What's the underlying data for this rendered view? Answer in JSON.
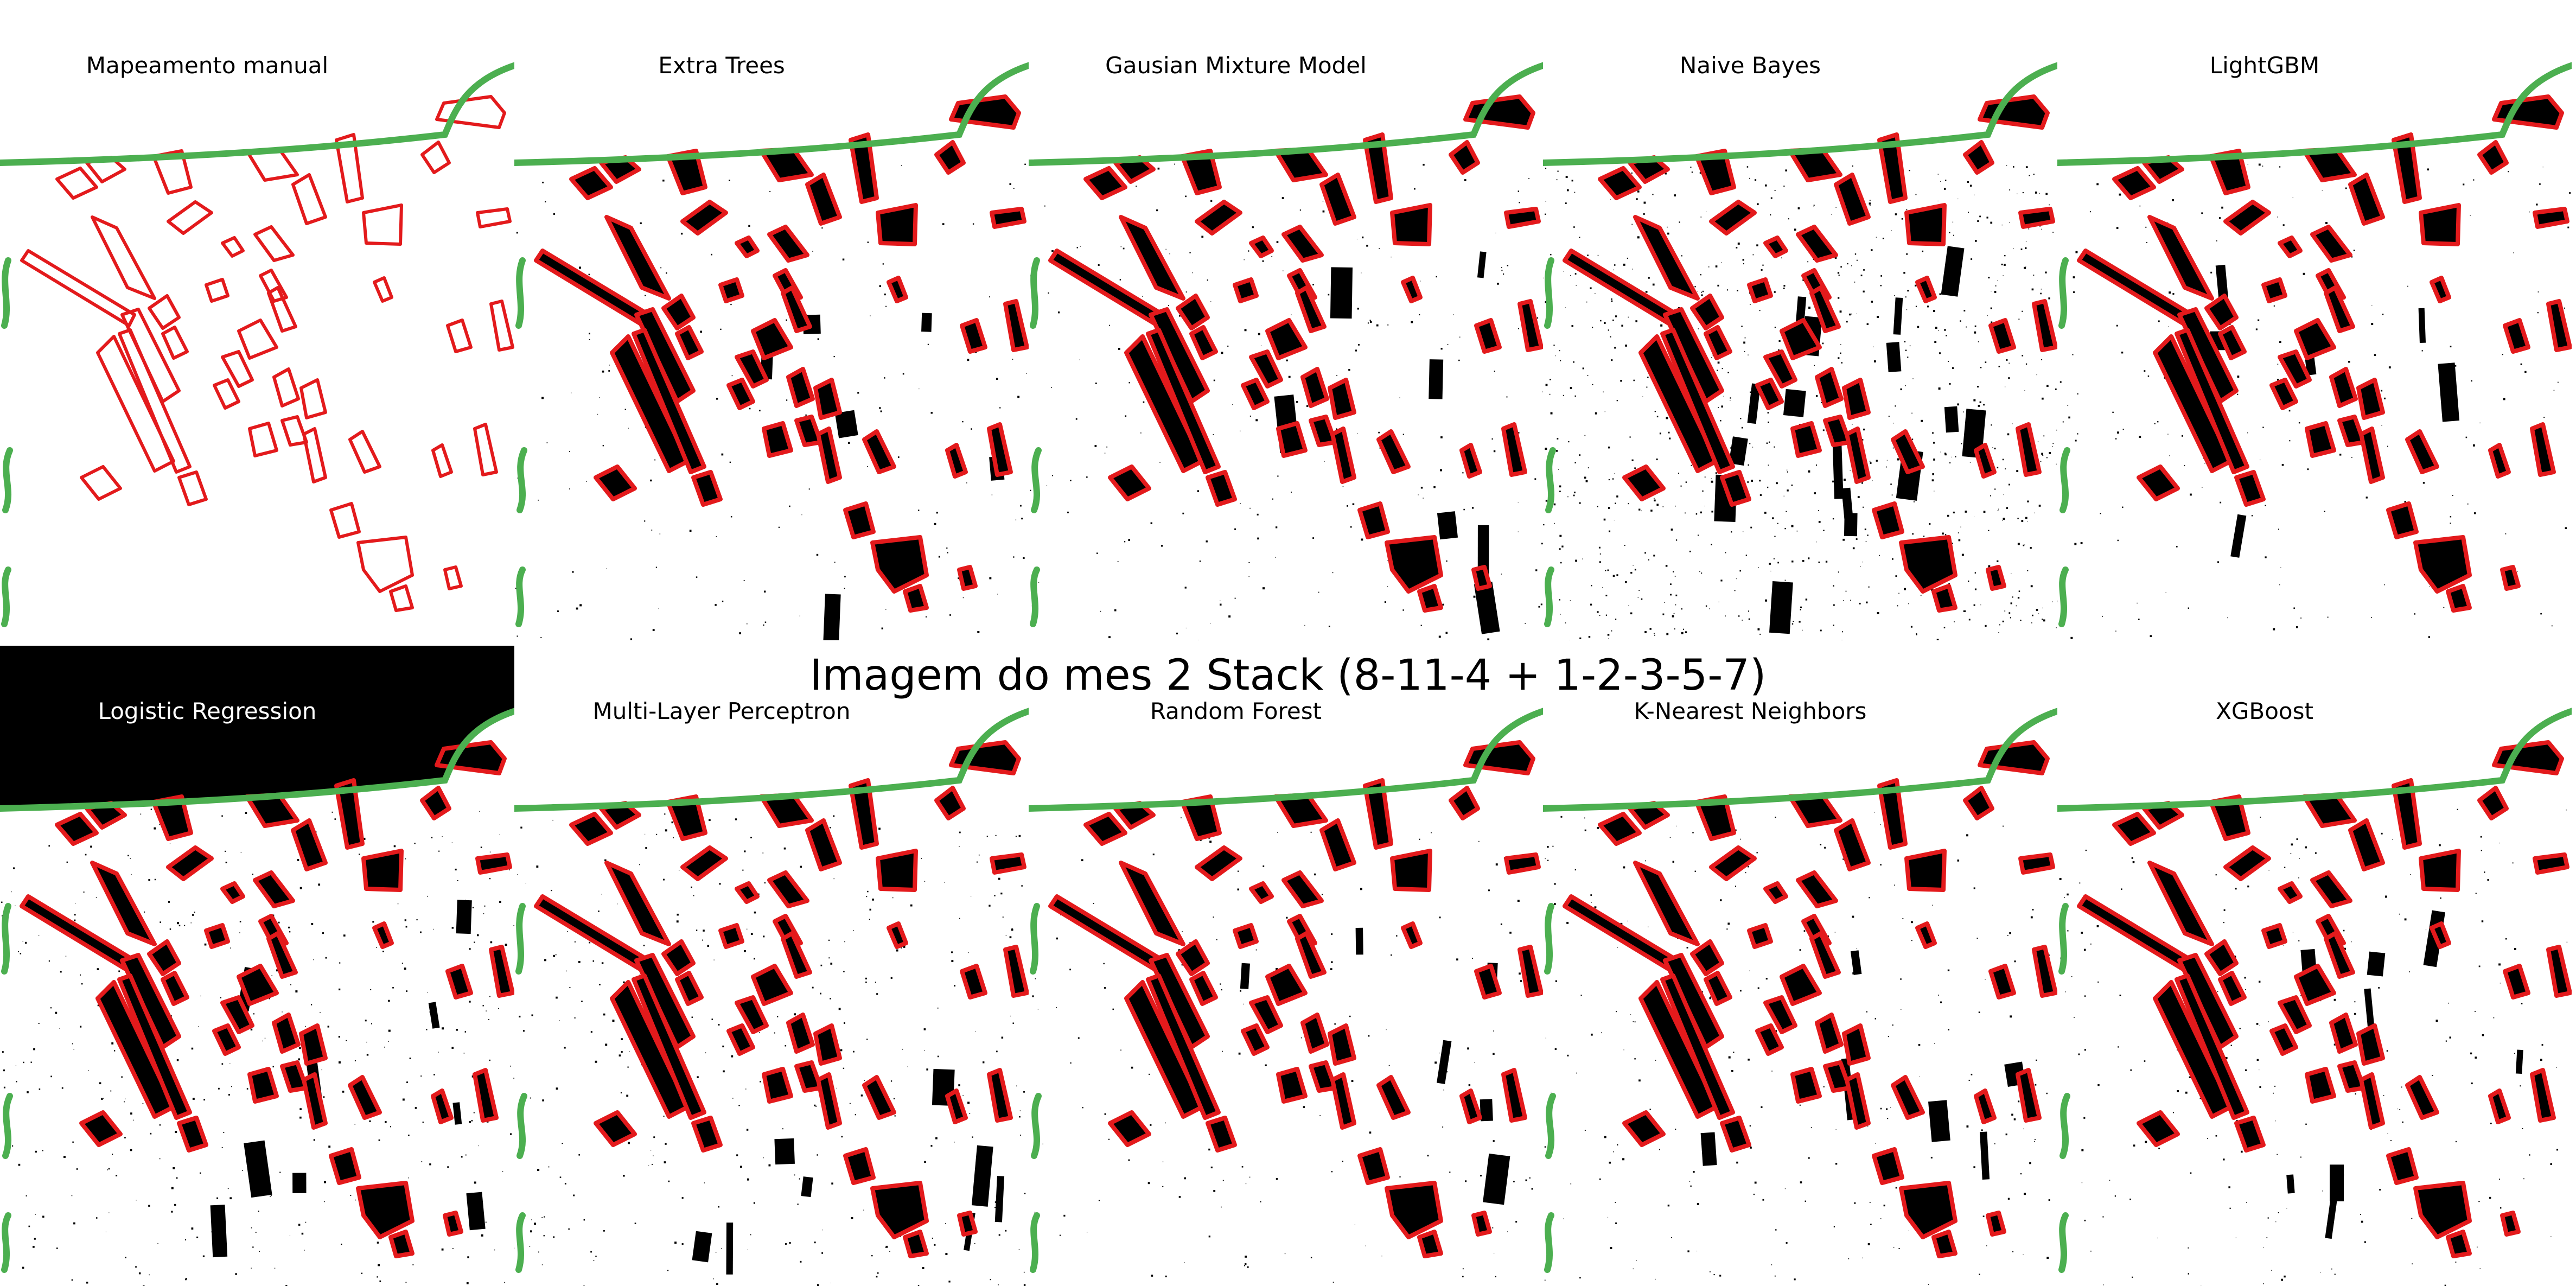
{
  "figure": {
    "suptitle": "Imagem do mes 2 Stack (8-11-4 + 1-2-3-5-7)",
    "colors": {
      "boundary": "#e31a1c",
      "coast": "#4caf50",
      "built": "#000000",
      "background": "#ffffff"
    }
  },
  "panels": [
    {
      "title": "Mapeamento manual",
      "mode": "reference",
      "noise": 0,
      "blobs": 0
    },
    {
      "title": "Extra Trees",
      "mode": "classified",
      "noise": 0.06,
      "blobs": 6
    },
    {
      "title": "Gausian Mixture Model",
      "mode": "classified",
      "noise": 0.08,
      "blobs": 7
    },
    {
      "title": "Naive Bayes",
      "mode": "classified",
      "noise": 0.3,
      "blobs": 16
    },
    {
      "title": "LightGBM",
      "mode": "classified",
      "noise": 0.07,
      "blobs": 6
    },
    {
      "title": "Logistic Regression",
      "mode": "classified",
      "noise": 0.14,
      "blobs": 9,
      "dark_title_band": true
    },
    {
      "title": "Multi-Layer Perceptron",
      "mode": "classified",
      "noise": 0.12,
      "blobs": 8
    },
    {
      "title": "Random Forest",
      "mode": "classified",
      "noise": 0.06,
      "blobs": 7
    },
    {
      "title": "K-Nearest Neighbors",
      "mode": "classified",
      "noise": 0.09,
      "blobs": 8
    },
    {
      "title": "XGBoost",
      "mode": "classified",
      "noise": 0.08,
      "blobs": 8
    }
  ]
}
